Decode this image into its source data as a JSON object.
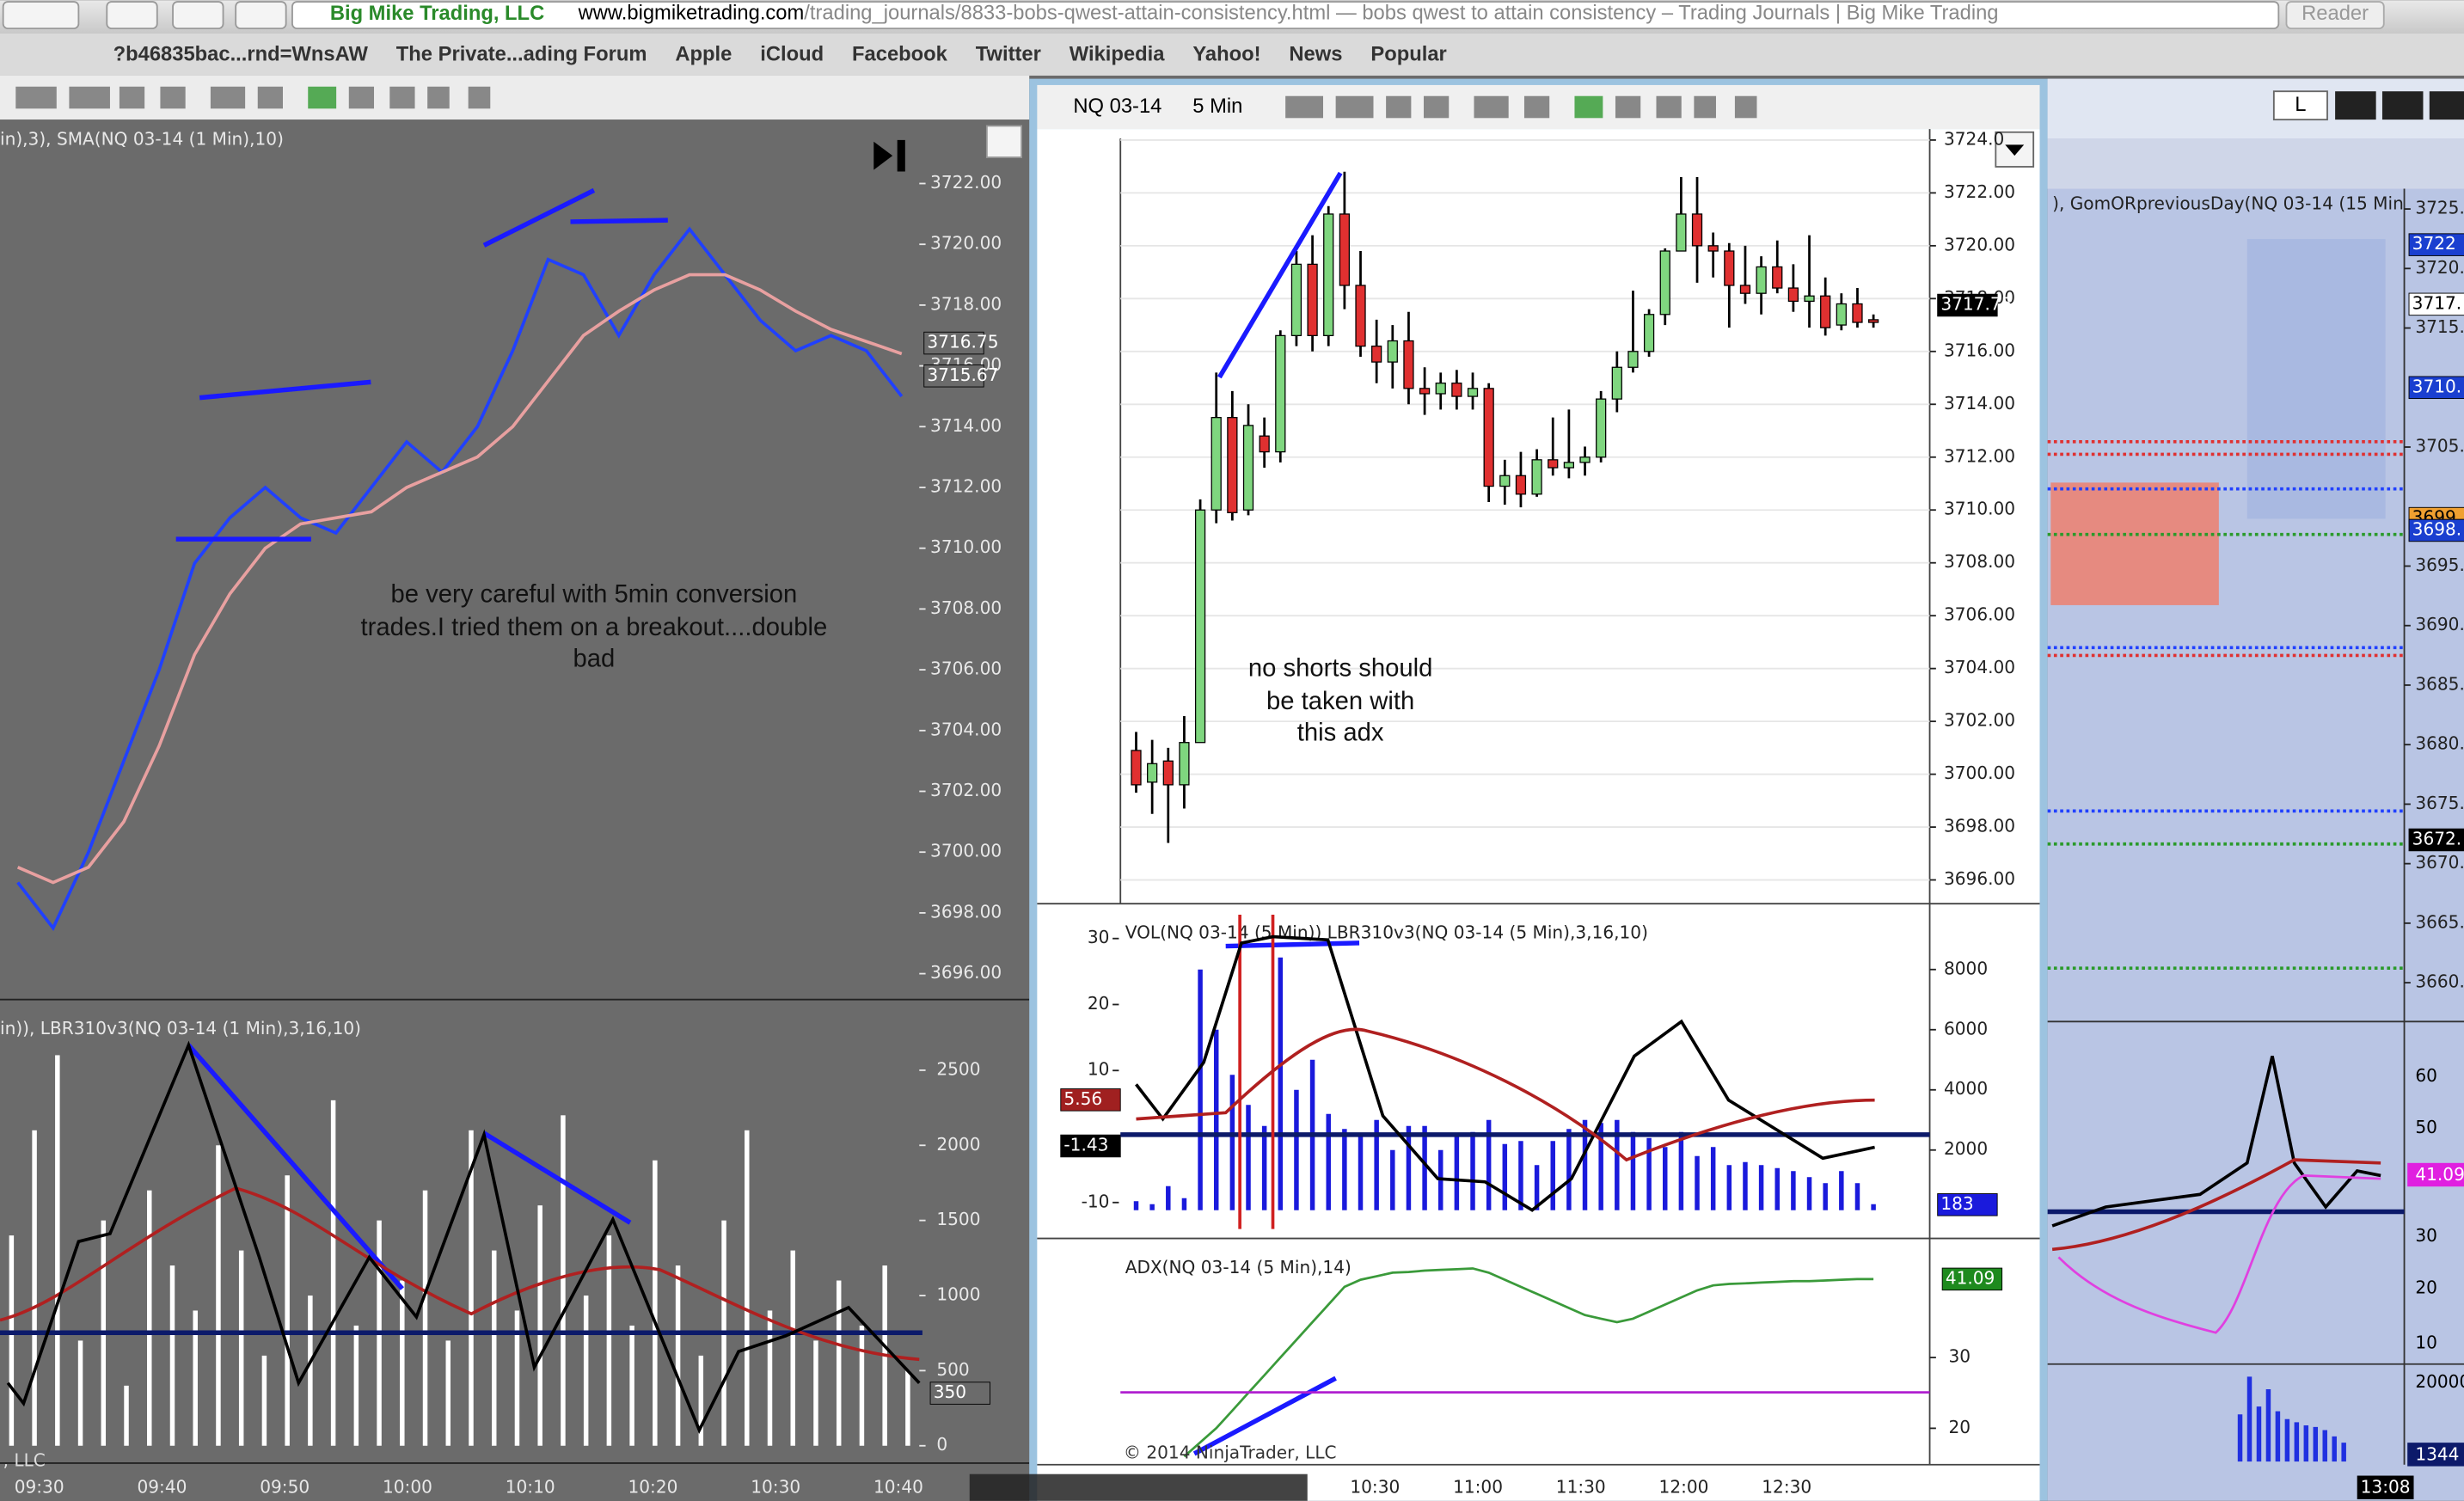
{
  "browser": {
    "site": "Big Mike Trading, LLC",
    "url": "www.bigmiketrading.com",
    "path": "/trading_journals/8833-bobs-qwest-attain-consistency.html — bobs qwest to attain consistency – Trading Journals | Big Mike Trading",
    "reader": "Reader"
  },
  "bookmarks": [
    "?b46835bac...rnd=WnsAW",
    "The Private...ading Forum",
    "Apple",
    "iCloud",
    "Facebook",
    "Twitter",
    "Wikipedia",
    "Yahoo!",
    "News",
    "Popular"
  ],
  "left": {
    "note": [
      "be very careful with 5min conversion",
      "trades.I tried them on a breakout....double",
      "bad"
    ],
    "copyright": ", LLC"
  },
  "middle": {
    "symbol": "NQ 03-14",
    "interval": "5 Min",
    "note": [
      "no shorts should",
      "be taken with",
      "this adx"
    ],
    "copyright": "© 2014 NinjaTrader, LLC"
  },
  "right": {
    "window_button": "L",
    "lower_ticks": [
      "60",
      "50",
      "30",
      "20",
      "10"
    ],
    "osc_tag": "41.09",
    "vol_tick": "20000",
    "vol_tag": "1344",
    "time_tag": "13:08"
  },
  "chart_data": [
    {
      "type": "line",
      "title": "in),3), SMA(NQ 03-14 (1 Min),10)",
      "series": [
        {
          "color": "#2040ff",
          "values": [
            3699,
            3697.5,
            3700,
            3703,
            3706,
            3709.5,
            3711,
            3712,
            3711,
            3710.5,
            3712,
            3713.5,
            3712.5,
            3714,
            3716.5,
            3719.5,
            3719,
            3717,
            3719,
            3720.5,
            3719,
            3717.5,
            3716.5,
            3717,
            3716.5,
            3715
          ]
        },
        {
          "color": "#e8a0a0",
          "values": [
            3699.5,
            3699,
            3699.5,
            3701,
            3703.5,
            3706.5,
            3708.5,
            3710,
            3710.8,
            3711,
            3711.2,
            3712,
            3712.5,
            3713,
            3714,
            3715.5,
            3717,
            3717.8,
            3718.5,
            3719,
            3719,
            3718.5,
            3717.8,
            3717.2,
            3716.8,
            3716.4
          ]
        }
      ],
      "ylim": [
        3695.2,
        3724
      ],
      "yticks": [
        {
          "value": 3696,
          "label": "3696.00"
        },
        {
          "value": 3698,
          "label": "3698.00"
        },
        {
          "value": 3700,
          "label": "3700.00"
        },
        {
          "value": 3702,
          "label": "3702.00"
        },
        {
          "value": 3704,
          "label": "3704.00"
        },
        {
          "value": 3706,
          "label": "3706.00"
        },
        {
          "value": 3708,
          "label": "3708.00"
        },
        {
          "value": 3710,
          "label": "3710.00"
        },
        {
          "value": 3712,
          "label": "3712.00"
        },
        {
          "value": 3714,
          "label": "3714.00"
        },
        {
          "value": 3716,
          "label": "3716.00"
        },
        {
          "value": 3718,
          "label": "3718.00"
        },
        {
          "value": 3720,
          "label": "3720.00"
        },
        {
          "value": 3722,
          "label": "3722.00"
        }
      ],
      "tags": [
        {
          "value": 3716.75,
          "label": "3716.75",
          "color": "#6b6b6b"
        },
        {
          "value": 3715.67,
          "label": "3715.67",
          "color": "#6b6b6b"
        }
      ]
    },
    {
      "type": "bar",
      "title": "in)), LBR310v3(NQ 03-14 (1 Min),3,16,10)",
      "color": "#ffffff",
      "values": [
        1400,
        2100,
        2600,
        700,
        1500,
        400,
        1700,
        1200,
        900,
        2000,
        1300,
        600,
        1800,
        1000,
        2300,
        800,
        1500,
        1100,
        1700,
        700,
        2100,
        1300,
        900,
        1600,
        2200,
        1000,
        1400,
        800,
        1900,
        1200,
        600,
        1500,
        2100,
        900,
        1300,
        700,
        1100,
        800,
        1200,
        500
      ],
      "ylim": [
        -105,
        2960
      ],
      "yticks": [
        0,
        500,
        1000,
        1500,
        2000,
        2500
      ],
      "tags": [
        {
          "value": 350,
          "label": "350",
          "color": "#6b6b6b"
        }
      ],
      "time_labels": [
        "09:30",
        "09:40",
        "09:50",
        "10:00",
        "10:10",
        "10:20",
        "10:30",
        "10:40"
      ]
    },
    {
      "type": "candlestick",
      "grid": true,
      "open": [
        3700.9,
        3699.7,
        3700.5,
        3699.6,
        3701.2,
        3710,
        3713.5,
        3710,
        3712.8,
        3712.2,
        3716.6,
        3719.3,
        3716.6,
        3721.2,
        3718.5,
        3716.2,
        3715.6,
        3716.4,
        3714.6,
        3714.4,
        3714.8,
        3714.3,
        3714.6,
        3710.9,
        3711.3,
        3710.6,
        3711.9,
        3711.6,
        3711.8,
        3712,
        3714.2,
        3715.4,
        3716,
        3717.4,
        3719.8,
        3721.2,
        3720,
        3719.8,
        3718.5,
        3718.2,
        3719.2,
        3718.4,
        3717.9,
        3718.1,
        3717,
        3717.8,
        3717.2
      ],
      "high": [
        3701.6,
        3701.3,
        3701,
        3702.2,
        3710.4,
        3715.2,
        3714.5,
        3714,
        3713.5,
        3716.8,
        3719.8,
        3720.4,
        3721.5,
        3722.8,
        3719.8,
        3717.2,
        3717,
        3717.5,
        3715.4,
        3715.2,
        3715.3,
        3715.2,
        3714.8,
        3711.9,
        3712.2,
        3712.3,
        3713.5,
        3713.8,
        3712.4,
        3714.5,
        3716,
        3718.3,
        3717.6,
        3719.9,
        3722.6,
        3722.6,
        3720.5,
        3720.1,
        3720,
        3719.6,
        3720.2,
        3719.3,
        3720.4,
        3718.8,
        3718.2,
        3718.4,
        3717.4
      ],
      "low": [
        3699.3,
        3698.5,
        3697.4,
        3698.7,
        3701.2,
        3709.5,
        3709.6,
        3709.8,
        3711.6,
        3711.8,
        3716.2,
        3716,
        3716.2,
        3717.6,
        3715.8,
        3714.8,
        3714.6,
        3714,
        3713.6,
        3713.8,
        3713.8,
        3713.8,
        3710.3,
        3710.2,
        3710.1,
        3710.5,
        3711.3,
        3711.2,
        3711.3,
        3711.8,
        3713.7,
        3715.2,
        3715.8,
        3717,
        3719.8,
        3718.6,
        3718.8,
        3716.9,
        3717.8,
        3717.4,
        3718.2,
        3717.5,
        3716.9,
        3716.6,
        3716.8,
        3716.9,
        3716.9
      ],
      "close": [
        3699.6,
        3700.4,
        3699.6,
        3701.2,
        3710,
        3713.5,
        3709.9,
        3713.2,
        3712.2,
        3716.6,
        3719.3,
        3716.6,
        3721.2,
        3718.5,
        3716.2,
        3715.6,
        3716.4,
        3714.6,
        3714.4,
        3714.8,
        3714.3,
        3714.6,
        3710.9,
        3711.3,
        3710.6,
        3711.9,
        3711.6,
        3711.8,
        3712,
        3714.2,
        3715.4,
        3716,
        3717.4,
        3719.8,
        3721.2,
        3720,
        3719.8,
        3718.5,
        3718.2,
        3719.2,
        3718.4,
        3717.9,
        3718.1,
        3716.9,
        3717.8,
        3717.1,
        3717.1
      ],
      "up_color": "#7fd67f",
      "down_color": "#e03030",
      "ylim": [
        3695.1,
        3724.06
      ],
      "yticks": [
        {
          "value": 3696,
          "label": "3696.00"
        },
        {
          "value": 3698,
          "label": "3698.00"
        },
        {
          "value": 3700,
          "label": "3700.00"
        },
        {
          "value": 3702,
          "label": "3702.00"
        },
        {
          "value": 3704,
          "label": "3704.00"
        },
        {
          "value": 3706,
          "label": "3706.00"
        },
        {
          "value": 3708,
          "label": "3708.00"
        },
        {
          "value": 3710,
          "label": "3710.00"
        },
        {
          "value": 3712,
          "label": "3712.00"
        },
        {
          "value": 3714,
          "label": "3714.00"
        },
        {
          "value": 3716,
          "label": "3716.00"
        },
        {
          "value": 3718,
          "label": "3718.00"
        },
        {
          "value": 3720,
          "label": "3720.00"
        },
        {
          "value": 3722,
          "label": "3722.00"
        },
        {
          "value": 3724,
          "label": "3724.0"
        }
      ],
      "tags": [
        {
          "value": 3717.75,
          "label": "3717.75",
          "color": "#000000"
        }
      ]
    },
    {
      "type": "bar",
      "title": "VOL(NQ 03-14 (5 Min)) LBR310v3(NQ 03-14 (5 Min),3,16,10)",
      "color": "#1a1adc",
      "values": [
        300,
        200,
        800,
        400,
        8000,
        6000,
        4500,
        3500,
        2800,
        8400,
        4000,
        5000,
        3200,
        2700,
        2500,
        3000,
        2000,
        2800,
        2800,
        2000,
        2500,
        2600,
        3000,
        2200,
        2300,
        1500,
        2300,
        2700,
        3000,
        2900,
        3000,
        2600,
        2400,
        2100,
        2600,
        1800,
        2100,
        1500,
        1600,
        1500,
        1400,
        1300,
        1100,
        900,
        1300,
        900,
        200
      ],
      "ylim": [
        -885,
        10083
      ],
      "yticks": [
        2000,
        4000,
        6000,
        8000
      ],
      "y2lim": [
        -15.2,
        34.8
      ],
      "y2ticks": [
        -10,
        10,
        20,
        30
      ],
      "tags": [
        {
          "value": 183,
          "label": "183",
          "color": "#1a1adc"
        }
      ],
      "y2tags": [
        {
          "value": 5.56,
          "label": "5.56",
          "color": "#a02020"
        },
        {
          "value": -1.43,
          "label": "-1.43",
          "color": "#000000"
        }
      ]
    },
    {
      "type": "line",
      "title": "ADX(NQ 03-14 (5 Min),14)",
      "color": "#3a9a3a",
      "values": [
        null,
        null,
        null,
        16,
        18,
        20,
        22.5,
        25,
        27.5,
        30,
        32.5,
        35,
        37.5,
        40,
        41,
        41.5,
        42,
        42.1,
        42.3,
        42.4,
        42.5,
        42.6,
        42,
        41,
        40,
        39,
        38,
        37,
        36,
        35.5,
        35,
        35.5,
        36.5,
        37.5,
        38.5,
        39.5,
        40.2,
        40.4,
        40.5,
        40.6,
        40.7,
        40.8,
        40.8,
        40.9,
        41,
        41.1,
        41.09
      ],
      "ylim": [
        15.3,
        46.4
      ],
      "yticks": [
        20,
        30
      ],
      "tags": [
        {
          "value": 41.09,
          "label": "41.09",
          "color": "#1e8a1e"
        }
      ],
      "time_labels": [
        "10:30",
        "11:00",
        "11:30",
        "12:00",
        "12:30"
      ]
    },
    {
      "type": "axis",
      "title": "), GomORpreviousDay(NQ 03-14 (15 Min",
      "ylim": [
        3657,
        3726.7
      ],
      "yticks": [
        {
          "value": 3725,
          "label": "3725.0"
        },
        {
          "value": 3720,
          "label": "3720.0"
        },
        {
          "value": 3715,
          "label": "3715.0"
        },
        {
          "value": 3705,
          "label": "3705.0"
        },
        {
          "value": 3695,
          "label": "3695.0"
        },
        {
          "value": 3690,
          "label": "3690.0"
        },
        {
          "value": 3685,
          "label": "3685.0"
        },
        {
          "value": 3680,
          "label": "3680.0"
        },
        {
          "value": 3675,
          "label": "3675.0"
        },
        {
          "value": 3670,
          "label": "3670.0"
        },
        {
          "value": 3665,
          "label": "3665.0"
        },
        {
          "value": 3660,
          "label": "3660.0"
        }
      ],
      "tags": [
        {
          "value": 3722,
          "label": "3722",
          "color": "#1a3fd0"
        },
        {
          "value": 3717,
          "label": "3717.",
          "color": "#ffffff"
        },
        {
          "value": 3710,
          "label": "3710.",
          "color": "#1a3fd0"
        },
        {
          "value": 3699,
          "label": "3699",
          "color": "#f0a030"
        },
        {
          "value": 3698,
          "label": "3698.",
          "color": "#1a3fd0"
        },
        {
          "value": 3672,
          "label": "3672.",
          "color": "#000000"
        }
      ]
    }
  ]
}
